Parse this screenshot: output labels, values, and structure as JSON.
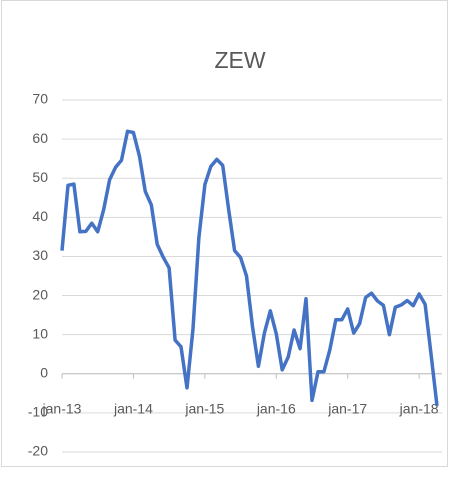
{
  "chart_data": {
    "type": "line",
    "title": "ZEW",
    "categories": [
      "jan-13",
      null,
      null,
      null,
      null,
      null,
      null,
      null,
      null,
      null,
      null,
      null,
      "jan-14",
      null,
      null,
      null,
      null,
      null,
      null,
      null,
      null,
      null,
      null,
      null,
      "jan-15",
      null,
      null,
      null,
      null,
      null,
      null,
      null,
      null,
      null,
      null,
      null,
      "jan-16",
      null,
      null,
      null,
      null,
      null,
      null,
      null,
      null,
      null,
      null,
      null,
      "jan-17",
      null,
      null,
      null,
      null,
      null,
      null,
      null,
      null,
      null,
      null,
      null,
      "jan-18",
      null,
      null,
      null
    ],
    "series": [
      {
        "name": "ZEW",
        "color": "#4472c4",
        "values": [
          31.5,
          48.2,
          48.5,
          36.3,
          36.4,
          38.5,
          36.3,
          42.0,
          49.6,
          52.8,
          54.6,
          62.0,
          61.7,
          55.7,
          46.6,
          43.2,
          33.1,
          29.8,
          27.1,
          8.6,
          6.9,
          -3.6,
          11.5,
          34.9,
          48.4,
          53.0,
          54.8,
          53.3,
          41.9,
          31.5,
          29.7,
          25.0,
          12.1,
          1.9,
          10.4,
          16.1,
          10.2,
          1.0,
          4.3,
          11.2,
          6.4,
          19.2,
          -6.8,
          0.5,
          0.5,
          6.2,
          13.8,
          13.8,
          16.6,
          10.4,
          12.8,
          19.5,
          20.6,
          18.6,
          17.5,
          10.0,
          17.0,
          17.6,
          18.7,
          17.4,
          20.4,
          17.8,
          5.1,
          -8.2
        ]
      }
    ],
    "ylim": [
      -20,
      70
    ],
    "yticks": [
      -20,
      -10,
      0,
      10,
      20,
      30,
      40,
      50,
      60,
      70
    ],
    "grid": true
  }
}
